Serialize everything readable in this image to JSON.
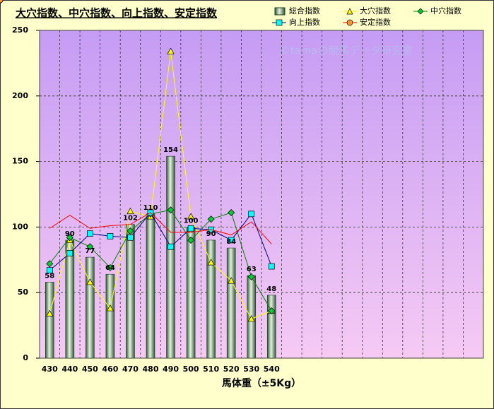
{
  "chart_data": {
    "type": "bar-line",
    "title": "大穴指数、中穴指数、向上指数、安定指数",
    "watermark": "©tamaの競馬データ研究室",
    "x_label": "馬体重（±5Kg）",
    "categories": [
      430,
      440,
      450,
      460,
      470,
      480,
      490,
      500,
      510,
      520,
      530,
      540,
      null,
      null,
      null,
      null,
      null,
      null,
      null,
      null,
      null,
      null
    ],
    "series": [
      {
        "name": "総合指数",
        "kind": "bar",
        "color": "#7fb08a",
        "values": [
          58,
          90,
          77,
          64,
          102,
          110,
          154,
          100,
          90,
          84,
          63,
          48,
          null,
          null,
          null,
          null,
          null,
          null,
          null,
          null,
          null,
          null
        ]
      },
      {
        "name": "大穴指数",
        "kind": "line",
        "marker": "triangle",
        "color": "#ffff00",
        "line_color": "#ffff00",
        "values": [
          34,
          90,
          58,
          38,
          112,
          108,
          234,
          108,
          73,
          59,
          30,
          36,
          null,
          null,
          null,
          null,
          null,
          null,
          null,
          null,
          null,
          null
        ]
      },
      {
        "name": "中穴指数",
        "kind": "line",
        "marker": "diamond",
        "color": "#00cc33",
        "line_color": "#008000",
        "values": [
          72,
          92,
          85,
          69,
          97,
          110,
          113,
          90,
          106,
          111,
          62,
          36,
          null,
          null,
          null,
          null,
          null,
          null,
          null,
          null,
          null,
          null
        ]
      },
      {
        "name": "向上指数",
        "kind": "line",
        "marker": "square",
        "color": "#00ffff",
        "line_color": "#000080",
        "values": [
          67,
          80,
          95,
          93,
          92,
          111,
          85,
          99,
          98,
          90,
          110,
          70,
          null,
          null,
          null,
          null,
          null,
          null,
          null,
          null,
          null,
          null
        ]
      },
      {
        "name": "安定指数",
        "kind": "line",
        "marker": "circle",
        "color": "#ff9933",
        "line_color": "#ff0000",
        "values": [
          99,
          109,
          99,
          101,
          102,
          111,
          96,
          96,
          98,
          94,
          104,
          87,
          null,
          null,
          null,
          null,
          null,
          null,
          null,
          null,
          null,
          null
        ]
      }
    ],
    "ylim": [
      0,
      250
    ],
    "yticks": [
      0,
      50,
      100,
      150,
      200,
      250
    ],
    "grid": true,
    "legend": "top-right"
  }
}
